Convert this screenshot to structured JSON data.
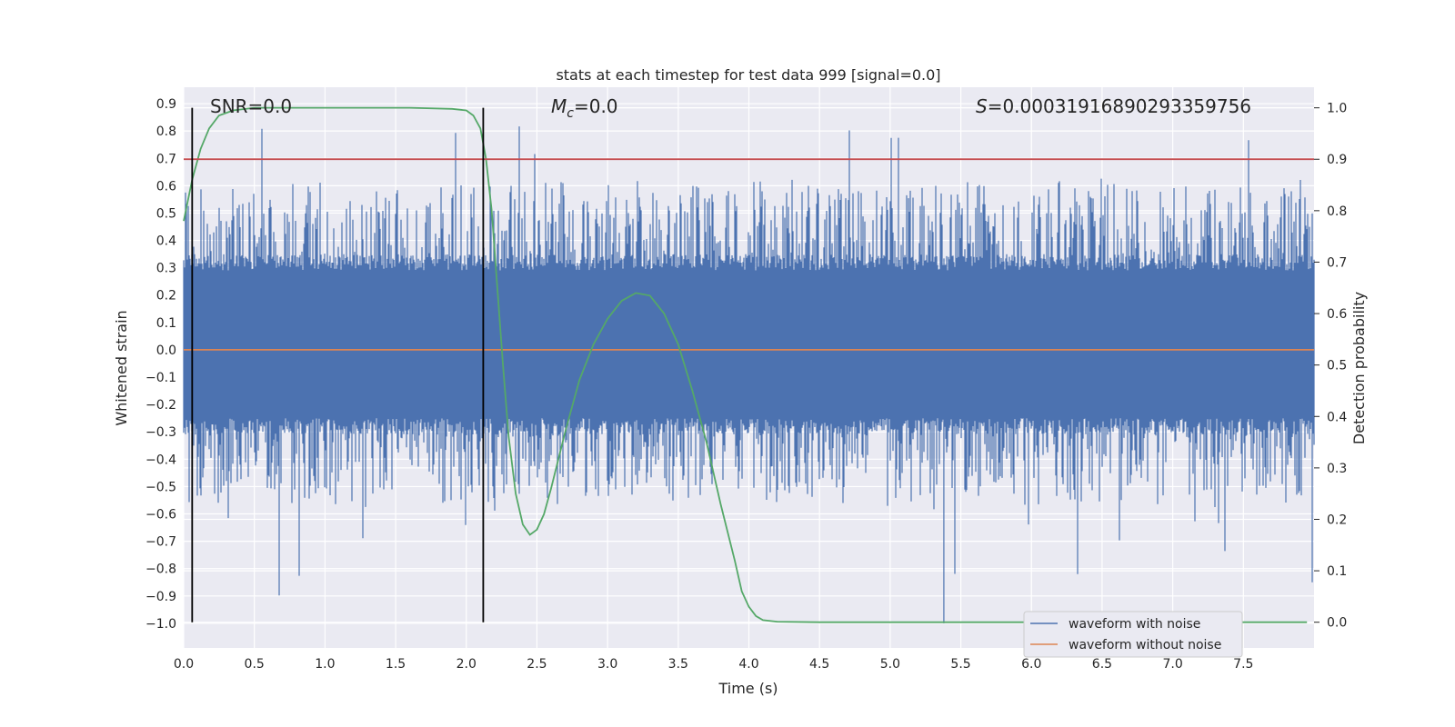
{
  "chart_data": {
    "type": "line",
    "title": "stats at each timestep for test data 999 [signal=0.0]",
    "xlabel": "Time (s)",
    "ylabel_left": "Whitened strain",
    "ylabel_right": "Detection probability",
    "xlim": [
      0.0,
      8.0
    ],
    "ylim_left": [
      -1.09,
      0.96
    ],
    "ylim_right": [
      -0.05,
      1.04
    ],
    "x_ticks": [
      "0.0",
      "0.5",
      "1.0",
      "1.5",
      "2.0",
      "2.5",
      "3.0",
      "3.5",
      "4.0",
      "4.5",
      "5.0",
      "5.5",
      "6.0",
      "6.5",
      "7.0",
      "7.5"
    ],
    "y_ticks_left": [
      "0.9",
      "0.8",
      "0.7",
      "0.6",
      "0.5",
      "0.4",
      "0.3",
      "0.2",
      "0.1",
      "0.0",
      "−0.1",
      "−0.2",
      "−0.3",
      "−0.4",
      "−0.5",
      "−0.6",
      "−0.7",
      "−0.8",
      "−0.9",
      "−1.0"
    ],
    "y_ticks_right": [
      "1.0",
      "0.9",
      "0.8",
      "0.7",
      "0.6",
      "0.5",
      "0.4",
      "0.3",
      "0.2",
      "0.1",
      "0.0"
    ],
    "annotations": {
      "snr": "SNR=0.0",
      "mc_symbol": "M",
      "mc_sub": "c",
      "mc_value": "=0.0",
      "s_symbol": "S",
      "s_value": "=0.00031916890293359756"
    },
    "threshold_probability": 0.9,
    "vertical_markers_x": [
      0.06,
      2.12
    ],
    "legend": {
      "position": "lower right",
      "entries": [
        "waveform with noise",
        "waveform without noise"
      ]
    },
    "series": [
      {
        "name": "waveform with noise",
        "axis": "left",
        "color": "#4c72b0",
        "seed": 999,
        "envelope": [
          0.32,
          -0.28
        ],
        "spikes_up_max": 0.87,
        "spikes_down_min": -1.0
      },
      {
        "name": "waveform without noise",
        "axis": "left",
        "color": "#dd8452",
        "x": [
          0.0,
          8.0
        ],
        "values": [
          0.0,
          0.0
        ]
      },
      {
        "name": "detection probability",
        "axis": "right",
        "color": "#55a868",
        "x": [
          0.0,
          0.06,
          0.12,
          0.18,
          0.25,
          0.35,
          0.5,
          0.8,
          1.2,
          1.6,
          1.9,
          2.0,
          2.05,
          2.1,
          2.14,
          2.18,
          2.22,
          2.26,
          2.3,
          2.35,
          2.4,
          2.45,
          2.5,
          2.55,
          2.6,
          2.7,
          2.8,
          2.9,
          3.0,
          3.1,
          3.2,
          3.3,
          3.4,
          3.5,
          3.6,
          3.7,
          3.8,
          3.9,
          3.95,
          4.0,
          4.05,
          4.1,
          4.2,
          4.5,
          5.0,
          6.0,
          7.0,
          7.95
        ],
        "values": [
          0.78,
          0.86,
          0.92,
          0.96,
          0.985,
          0.995,
          1.0,
          1.0,
          1.0,
          1.0,
          0.998,
          0.995,
          0.985,
          0.96,
          0.9,
          0.8,
          0.65,
          0.5,
          0.36,
          0.25,
          0.19,
          0.17,
          0.18,
          0.21,
          0.26,
          0.37,
          0.47,
          0.54,
          0.59,
          0.625,
          0.64,
          0.635,
          0.6,
          0.54,
          0.45,
          0.35,
          0.23,
          0.12,
          0.06,
          0.03,
          0.012,
          0.004,
          0.001,
          0.0,
          0.0,
          0.0,
          0.0,
          0.0
        ]
      },
      {
        "name": "threshold",
        "axis": "right",
        "color": "#c44e52",
        "x": [
          0.0,
          8.0
        ],
        "values": [
          0.9,
          0.9
        ]
      }
    ]
  }
}
